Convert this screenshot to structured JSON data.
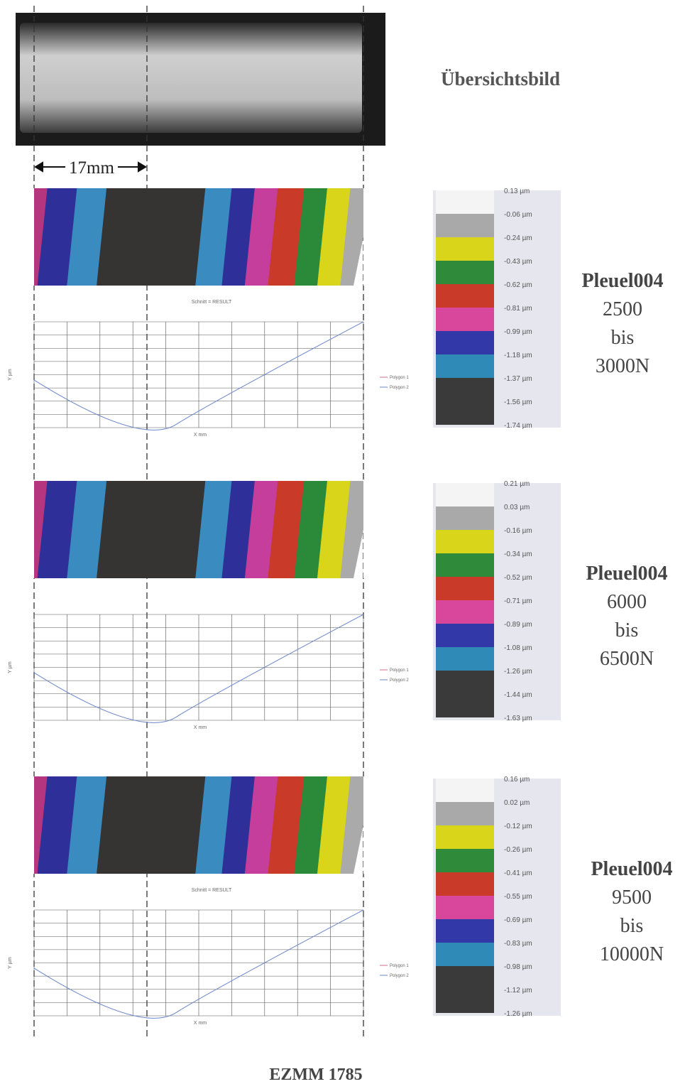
{
  "overview": {
    "title": "Übersichtsbild",
    "dimension": "17mm"
  },
  "panels": [
    {
      "label": [
        "Pleuel004",
        "2500",
        "bis",
        "3000N"
      ],
      "section": "Schnitt = RESULT",
      "x_axis": "X mm",
      "y_axis": "Y µm",
      "legend": [
        "Polygon 1",
        "Polygon 2"
      ],
      "scale": [
        "0.13 µm",
        "-0.06 µm",
        "-0.24 µm",
        "-0.43 µm",
        "-0.62 µm",
        "-0.81 µm",
        "-0.99 µm",
        "-1.18 µm",
        "-1.37 µm",
        "-1.56 µm",
        "-1.74 µm"
      ]
    },
    {
      "label": [
        "Pleuel004",
        "6000",
        "bis",
        "6500N"
      ],
      "x_axis": "X mm",
      "y_axis": "Y µm",
      "legend": [
        "Polygon 1",
        "Polygon 2"
      ],
      "scale": [
        "0.21 µm",
        "0.03 µm",
        "-0.16 µm",
        "-0.34 µm",
        "-0.52 µm",
        "-0.71 µm",
        "-0.89 µm",
        "-1.08 µm",
        "-1.26 µm",
        "-1.44 µm",
        "-1.63 µm"
      ]
    },
    {
      "label": [
        "Pleuel004",
        "9500",
        "bis",
        "10000N"
      ],
      "section": "Schnitt = RESULT",
      "x_axis": "X mm",
      "y_axis": "Y µm",
      "legend": [
        "Polygon 1",
        "Polygon 2"
      ],
      "scale": [
        "0.16 µm",
        "0.02 µm",
        "-0.12 µm",
        "-0.26 µm",
        "-0.41 µm",
        "-0.55 µm",
        "-0.69 µm",
        "-0.83 µm",
        "-0.98 µm",
        "-1.12 µm",
        "-1.26 µm"
      ]
    }
  ],
  "footer": "EZMM 1785"
}
